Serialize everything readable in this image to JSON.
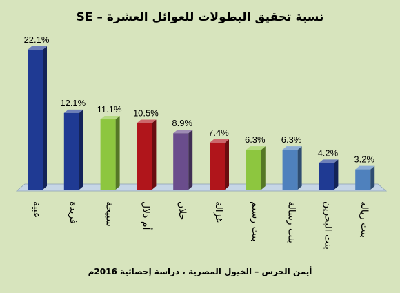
{
  "chart_data": {
    "type": "bar",
    "title": "نسبة تحقيق البطولات للعوائل العشرة – SE",
    "source": "أيمن الخرس – الخيول المصرية ، دراسة إحصائية 2016م",
    "categories": [
      "عبية",
      "فريدة",
      "سبيحة",
      "أم دلال",
      "حلان",
      "غزالة",
      "بنت رستم",
      "بنت رسالة",
      "بنت البحرين",
      "بنت ريالة"
    ],
    "values": [
      22.1,
      12.1,
      11.1,
      10.5,
      8.9,
      7.4,
      6.3,
      6.3,
      4.2,
      3.2
    ],
    "value_labels": [
      "22.1%",
      "12.1%",
      "11.1%",
      "10.5%",
      "8.9%",
      "7.4%",
      "6.3%",
      "6.3%",
      "4.2%",
      "3.2%"
    ],
    "colors": [
      "#1f3a93",
      "#1f3a93",
      "#8dc63f",
      "#b0151b",
      "#6a4d8c",
      "#b0151b",
      "#8dc63f",
      "#4f81bd",
      "#1f3a93",
      "#4f81bd"
    ],
    "ylim": [
      0,
      24
    ],
    "grid": false,
    "legend": "none",
    "xlabel": "",
    "ylabel": ""
  }
}
